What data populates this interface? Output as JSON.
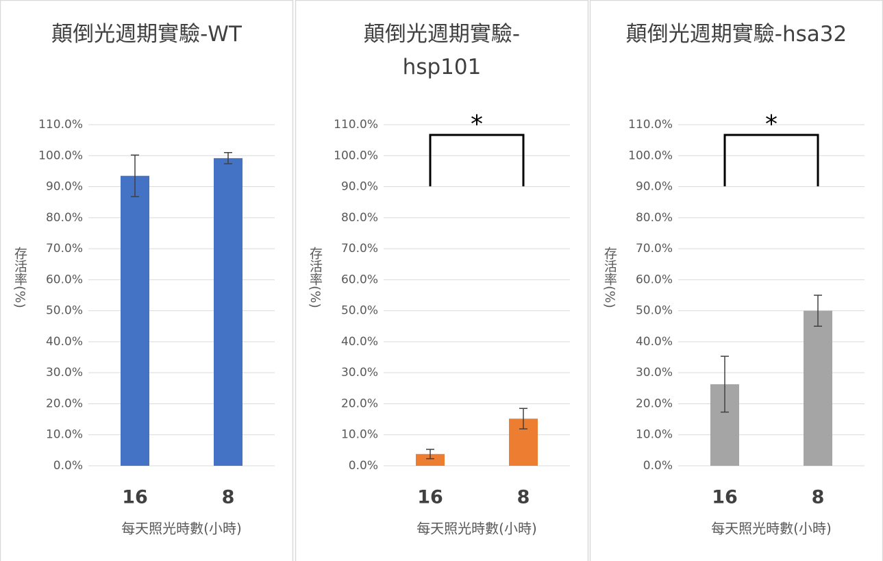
{
  "chart_data": [
    {
      "type": "bar",
      "title": "顛倒光週期實驗-WT",
      "y_label": "存活率(%)",
      "x_label": "每天照光時數(小時)",
      "categories": [
        "16",
        "8"
      ],
      "values": [
        93.5,
        99.2
      ],
      "errors": [
        6.7,
        1.8
      ],
      "color": "#4472c4",
      "ylim": [
        0,
        110
      ],
      "grid": true,
      "yticks": [
        {
          "value": 0,
          "label": "0.0%"
        },
        {
          "value": 10,
          "label": "10.0%"
        },
        {
          "value": 20,
          "label": "20.0%"
        },
        {
          "value": 30,
          "label": "30.0%"
        },
        {
          "value": 40,
          "label": "40.0%"
        },
        {
          "value": 50,
          "label": "50.0%"
        },
        {
          "value": 60,
          "label": "60.0%"
        },
        {
          "value": 70,
          "label": "70.0%"
        },
        {
          "value": 80,
          "label": "80.0%"
        },
        {
          "value": 90,
          "label": "90.0%"
        },
        {
          "value": 100,
          "label": "100.0%"
        },
        {
          "value": 110,
          "label": "110.0%"
        }
      ]
    },
    {
      "type": "bar",
      "title": "顛倒光週期實驗-hsp101",
      "y_label": "存活率(%)",
      "x_label": "每天照光時數(小時)",
      "categories": [
        "16",
        "8"
      ],
      "values": [
        3.8,
        15.2
      ],
      "errors": [
        1.5,
        3.3
      ],
      "color": "#ed7d31",
      "annotation": "*",
      "ylim": [
        0,
        110
      ],
      "grid": true,
      "yticks": [
        {
          "value": 0,
          "label": "0.0%"
        },
        {
          "value": 10,
          "label": "10.0%"
        },
        {
          "value": 20,
          "label": "20.0%"
        },
        {
          "value": 30,
          "label": "30.0%"
        },
        {
          "value": 40,
          "label": "40.0%"
        },
        {
          "value": 50,
          "label": "50.0%"
        },
        {
          "value": 60,
          "label": "60.0%"
        },
        {
          "value": 70,
          "label": "70.0%"
        },
        {
          "value": 80,
          "label": "80.0%"
        },
        {
          "value": 90,
          "label": "90.0%"
        },
        {
          "value": 100,
          "label": "100.0%"
        },
        {
          "value": 110,
          "label": "110.0%"
        }
      ]
    },
    {
      "type": "bar",
      "title": "顛倒光週期實驗-hsa32",
      "y_label": "存活率(%)",
      "x_label": "每天照光時數(小時)",
      "categories": [
        "16",
        "8"
      ],
      "values": [
        26.3,
        50.0
      ],
      "errors": [
        9.0,
        5.0
      ],
      "color": "#a5a5a5",
      "annotation": "*",
      "ylim": [
        0,
        110
      ],
      "grid": true,
      "yticks": [
        {
          "value": 0,
          "label": "0.0%"
        },
        {
          "value": 10,
          "label": "10.0%"
        },
        {
          "value": 20,
          "label": "20.0%"
        },
        {
          "value": 30,
          "label": "30.0%"
        },
        {
          "value": 40,
          "label": "40.0%"
        },
        {
          "value": 50,
          "label": "50.0%"
        },
        {
          "value": 60,
          "label": "60.0%"
        },
        {
          "value": 70,
          "label": "70.0%"
        },
        {
          "value": 80,
          "label": "80.0%"
        },
        {
          "value": 90,
          "label": "90.0%"
        },
        {
          "value": 100,
          "label": "100.0%"
        },
        {
          "value": 110,
          "label": "110.0%"
        }
      ]
    }
  ]
}
